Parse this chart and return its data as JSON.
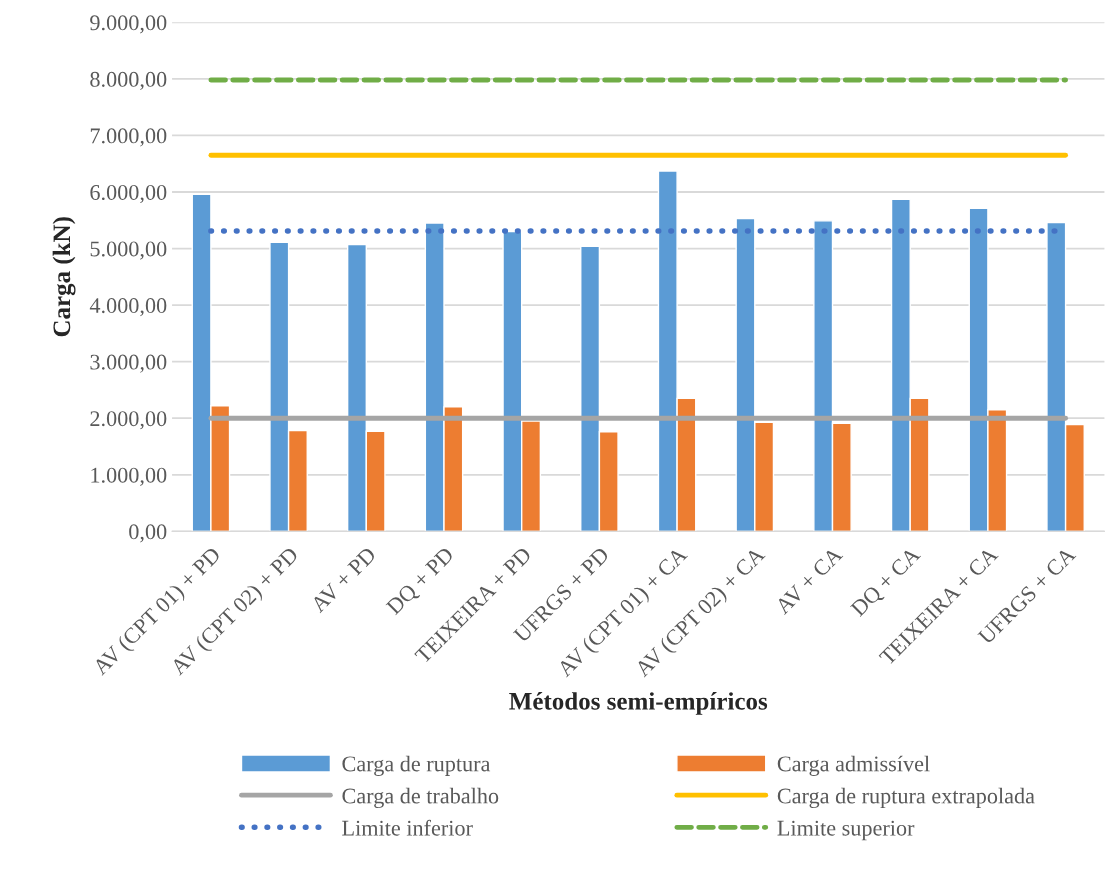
{
  "chart_data": {
    "type": "bar",
    "xlabel": "Métodos semi-empíricos",
    "ylabel": "Carga (kN)",
    "categories": [
      "AV (CPT 01) + PD",
      "AV (CPT 02) + PD",
      "AV + PD",
      "DQ + PD",
      "TEIXEIRA + PD",
      "UFRGS + PD",
      "AV (CPT 01) + CA",
      "AV (CPT 02) + CA",
      "AV + CA",
      "DQ + CA",
      "TEIXEIRA + CA",
      "UFRGS + CA"
    ],
    "series": [
      {
        "name": "Carga de ruptura",
        "color": "#5b9bd5",
        "values": [
          5960,
          5110,
          5070,
          5450,
          5300,
          5040,
          6370,
          5530,
          5490,
          5870,
          5710,
          5460
        ]
      },
      {
        "name": "Carga admissível",
        "color": "#ed7d31",
        "values": [
          2220,
          1780,
          1770,
          2200,
          1950,
          1760,
          2350,
          1930,
          1910,
          2350,
          2150,
          1890
        ]
      },
      {
        "name": "Carga de trabalho",
        "type": "line",
        "color": "#a5a5a5",
        "line_style": "solid",
        "values": [
          2000,
          2000,
          2000,
          2000,
          2000,
          2000,
          2000,
          2000,
          2000,
          2000,
          2000,
          2000
        ]
      },
      {
        "name": "Carga de ruptura extrapolada",
        "type": "line",
        "color": "#ffc000",
        "line_style": "solid",
        "values": [
          6650,
          6650,
          6650,
          6650,
          6650,
          6650,
          6650,
          6650,
          6650,
          6650,
          6650,
          6650
        ]
      },
      {
        "name": "Limite inferior",
        "type": "line",
        "color": "#4472c4",
        "line_style": "dotted",
        "values": [
          5310,
          5310,
          5310,
          5310,
          5310,
          5310,
          5310,
          5310,
          5310,
          5310,
          5310,
          5310
        ]
      },
      {
        "name": "Limite superior",
        "type": "line",
        "color": "#70ad47",
        "line_style": "dashed",
        "values": [
          7980,
          7980,
          7980,
          7980,
          7980,
          7980,
          7980,
          7980,
          7980,
          7980,
          7980,
          7980
        ]
      }
    ],
    "ylim": [
      0,
      9000
    ],
    "yticks": [
      {
        "value": 0,
        "label": "0,00"
      },
      {
        "value": 1000,
        "label": "1.000,00"
      },
      {
        "value": 2000,
        "label": "2.000,00"
      },
      {
        "value": 3000,
        "label": "3.000,00"
      },
      {
        "value": 4000,
        "label": "4.000,00"
      },
      {
        "value": 5000,
        "label": "5.000,00"
      },
      {
        "value": 6000,
        "label": "6.000,00"
      },
      {
        "value": 7000,
        "label": "7.000,00"
      },
      {
        "value": 8000,
        "label": "8.000,00"
      },
      {
        "value": 9000,
        "label": "9.000,00"
      }
    ],
    "grid": "y",
    "legend": "bottom"
  }
}
